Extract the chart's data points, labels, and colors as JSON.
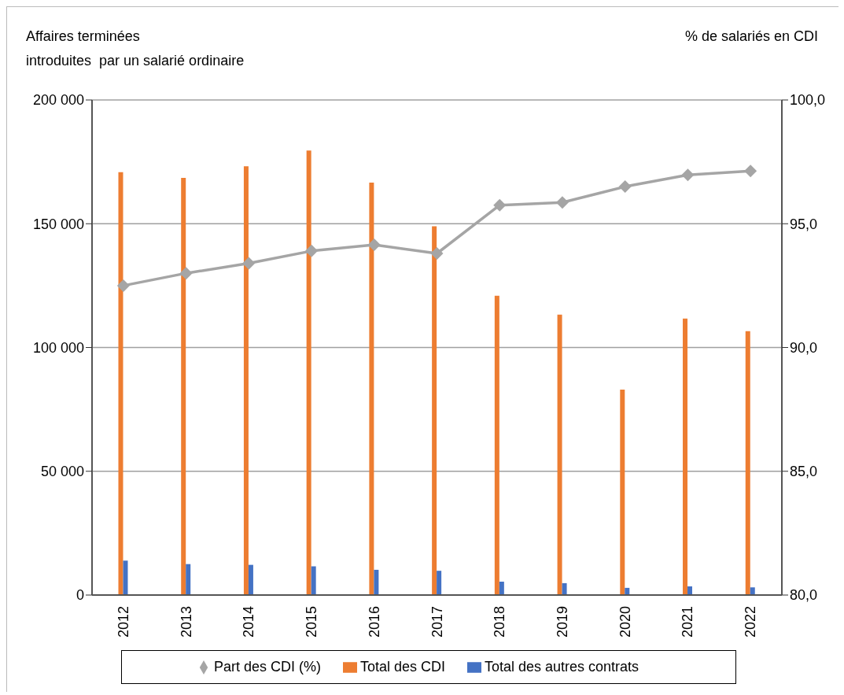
{
  "chart_data": {
    "type": "bar",
    "ylabel": "Affaires terminées\nintroduites  par un salarié ordinaire",
    "y2label": "% de salariés en CDI",
    "categories": [
      "2012",
      "2013",
      "2014",
      "2015",
      "2016",
      "2017",
      "2018",
      "2019",
      "2020",
      "2021",
      "2022"
    ],
    "series": [
      {
        "name": "Total des CDI",
        "color": "#ed7d31",
        "values": [
          170800,
          168500,
          173200,
          179600,
          166600,
          149000,
          120900,
          113300,
          83000,
          111700,
          106600
        ]
      },
      {
        "name": "Total des autres contrats",
        "color": "#4472c4",
        "values": [
          13900,
          12500,
          12200,
          11600,
          10200,
          9800,
          5400,
          4800,
          2900,
          3500,
          3100
        ]
      },
      {
        "name": "Part des CDI (%)",
        "type": "line",
        "axis": "y2",
        "color": "#a5a5a5",
        "marker": "diamond",
        "values": [
          92.5,
          93.0,
          93.4,
          93.9,
          94.15,
          93.8,
          95.75,
          95.86,
          96.5,
          96.97,
          97.13
        ]
      }
    ],
    "ylim": [
      0,
      200000
    ],
    "yticks": [
      {
        "value": 0,
        "label": "0"
      },
      {
        "value": 50000,
        "label": "50 000"
      },
      {
        "value": 100000,
        "label": "100 000"
      },
      {
        "value": 150000,
        "label": "150 000"
      },
      {
        "value": 200000,
        "label": "200 000"
      }
    ],
    "y2lim": [
      80,
      100
    ],
    "y2ticks": [
      {
        "value": 80,
        "label": "80,0"
      },
      {
        "value": 85,
        "label": "85,0"
      },
      {
        "value": 90,
        "label": "90,0"
      },
      {
        "value": 95,
        "label": "95,0"
      },
      {
        "value": 100,
        "label": "100,0"
      }
    ],
    "grid": "y",
    "legend": "bottom"
  }
}
